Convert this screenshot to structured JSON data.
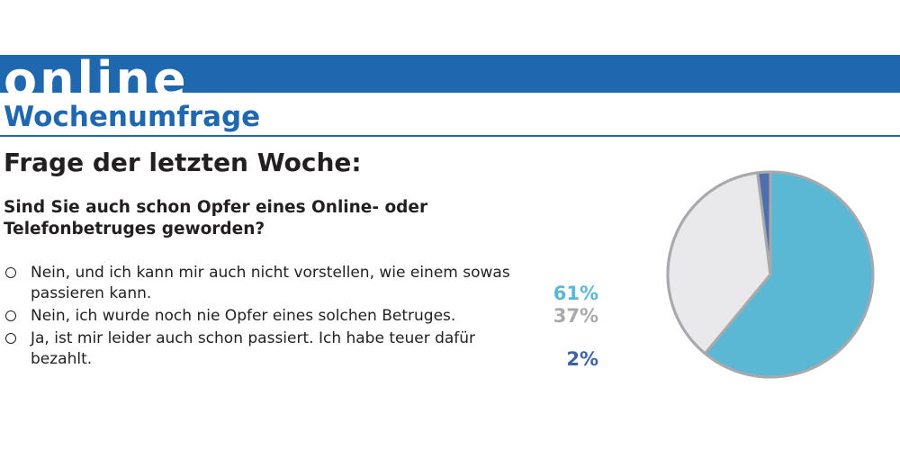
{
  "header": {
    "banner_title": "online",
    "subtitle": "Wochenumfrage"
  },
  "heading": "Frage der letzten Woche:",
  "question": "Sind Sie auch schon Opfer eines Online- oder Telefonbetruges geworden?",
  "answers": [
    {
      "text": "Nein, und ich kann mir auch nicht vorstellen, wie einem sowas passieren kann.",
      "percent_label": "61%",
      "color": "#5bb8d4"
    },
    {
      "text": "Nein, ich wurde noch nie Opfer eines solchen Betruges.",
      "percent_label": "37%",
      "color": "#a7a9ac"
    },
    {
      "text": "Ja, ist mir leider auch schon passiert. Ich habe teuer dafür bezahlt.",
      "percent_label": "2%",
      "color": "#3d62a8"
    }
  ],
  "colors": {
    "brand_blue": "#1f67ae",
    "slice_1": "#5bb8d4",
    "slice_2": "#e9e9ec",
    "slice_3": "#4d6fae",
    "pie_border": "#a7a9ac"
  },
  "chart_data": {
    "type": "pie",
    "categories": [
      "Nein, und ich kann mir auch nicht vorstellen, wie einem sowas passieren kann.",
      "Nein, ich wurde noch nie Opfer eines solchen Betruges.",
      "Ja, ist mir leider auch schon passiert. Ich habe teuer dafür bezahlt."
    ],
    "values": [
      61,
      37,
      2
    ],
    "title": "Frage der letzten Woche:"
  }
}
